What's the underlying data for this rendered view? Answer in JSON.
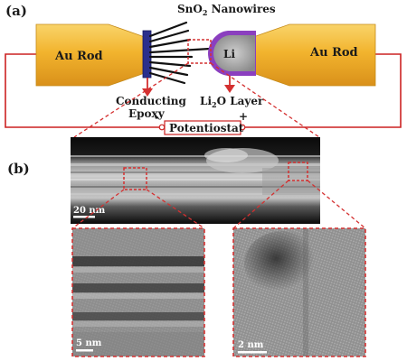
{
  "panel_a": {
    "panel_label": "(a)",
    "nanowires_label": "SnO",
    "nanowires_sub": "2",
    "nanowires_tail": " Nanowires",
    "au_rod_left": "Au Rod",
    "au_rod_right": "Au Rod",
    "li_label": "Li",
    "conducting": "Conducting",
    "epoxy": "Epoxy",
    "li2o_pre": "Li",
    "li2o_sub": "2",
    "li2o_post": "O Layer",
    "potentiostat": "Potentiostat",
    "minus": "-",
    "plus": "+"
  },
  "panel_b": {
    "panel_label": "(b)",
    "scalebar_top": "20 nm",
    "scalebar_left": "5 nm",
    "scalebar_right": "2 nm"
  },
  "colors": {
    "gold": "#f2b42e",
    "epoxy": "#2b2f8c",
    "li2o": "#8b3fbf",
    "wire": "#cc2222",
    "dash": "#d43030"
  }
}
